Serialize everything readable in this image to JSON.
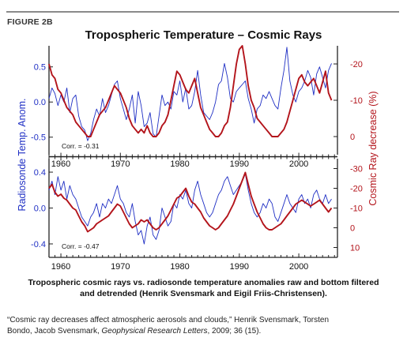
{
  "figure": {
    "label": "FIGURE 2B",
    "title": "Tropospheric Temperature – Cosmic Rays",
    "caption_line1": "Tropospheric cosmic rays vs. radiosonde temperature anomalies raw and bottom filtered",
    "caption_line2": "and detrended (Henrik Svensmark and Eigil Friis-Christensen).",
    "citation_line1": "“Cosmic ray decreases affect atmospheric aerosols and clouds,” Henrik Svensmark, Torsten",
    "citation_authors": "Bondo, Jacob Svensmark, ",
    "citation_journal": "Geophysical Research Letters",
    "citation_rest": ", 2009; 36 (15)."
  },
  "colors": {
    "temperature": "#1f2fc4",
    "cosmic": "#b3141b",
    "axis": "#222222"
  },
  "chart_data": [
    {
      "type": "line",
      "panel": "top",
      "annotation": "Corr. = -0.31",
      "ylabel_left": "Radiosonde Temp. Anom.",
      "ylabel_right": "Cosmic Ray decrease (%)",
      "xlim": [
        1958,
        2006.5
      ],
      "ylim_left": [
        -0.75,
        0.8
      ],
      "ylim_right": [
        5,
        -25
      ],
      "xticks": [
        1960,
        1970,
        1980,
        1990,
        2000
      ],
      "yticks_left": [
        0.5,
        0.0,
        -0.5
      ],
      "yticks_left_labels": [
        "0.5",
        "0.0",
        "-0.5"
      ],
      "yticks_right": [
        -20,
        -10,
        0
      ],
      "yticks_right_labels": [
        "-20",
        "-10",
        "0"
      ],
      "series": [
        {
          "axis": "left",
          "color_key": "temperature",
          "x": [
            1958,
            1958.5,
            1959,
            1959.5,
            1960,
            1960.5,
            1961,
            1961.5,
            1962,
            1962.5,
            1963,
            1963.5,
            1964,
            1964.5,
            1965,
            1965.5,
            1966,
            1966.5,
            1967,
            1967.5,
            1968,
            1968.5,
            1969,
            1969.5,
            1970,
            1970.5,
            1971,
            1971.5,
            1972,
            1972.5,
            1973,
            1973.5,
            1974,
            1974.5,
            1975,
            1975.5,
            1976,
            1976.5,
            1977,
            1977.5,
            1978,
            1978.5,
            1979,
            1979.5,
            1980,
            1980.5,
            1981,
            1981.5,
            1982,
            1982.5,
            1983,
            1983.5,
            1984,
            1984.5,
            1985,
            1985.5,
            1986,
            1986.5,
            1987,
            1987.5,
            1988,
            1988.5,
            1989,
            1989.5,
            1990,
            1990.5,
            1991,
            1991.5,
            1992,
            1992.5,
            1993,
            1993.5,
            1994,
            1994.5,
            1995,
            1995.5,
            1996,
            1996.5,
            1997,
            1997.5,
            1998,
            1998.5,
            1999,
            1999.5,
            2000,
            2000.5,
            2001,
            2001.5,
            2002,
            2002.5,
            2003,
            2003.5,
            2004,
            2004.5,
            2005,
            2005.5
          ],
          "y": [
            0.05,
            0.2,
            0.12,
            -0.05,
            0.1,
            0.0,
            0.2,
            -0.15,
            0.05,
            0.1,
            -0.2,
            -0.35,
            -0.4,
            -0.55,
            -0.45,
            -0.25,
            -0.1,
            -0.2,
            0.05,
            -0.15,
            -0.05,
            0.1,
            0.25,
            0.3,
            0.05,
            -0.1,
            -0.25,
            -0.1,
            0.1,
            -0.3,
            0.15,
            -0.05,
            -0.35,
            -0.3,
            -0.15,
            -0.45,
            -0.5,
            -0.2,
            0.1,
            -0.05,
            0.0,
            -0.1,
            0.15,
            0.1,
            0.3,
            0.0,
            0.2,
            -0.1,
            -0.05,
            0.15,
            0.45,
            0.1,
            -0.15,
            -0.2,
            -0.25,
            -0.15,
            0.0,
            0.25,
            0.3,
            0.55,
            0.35,
            0.05,
            0.0,
            0.15,
            0.2,
            0.25,
            0.3,
            0.05,
            -0.1,
            -0.3,
            -0.1,
            -0.05,
            0.1,
            0.05,
            0.15,
            0.05,
            -0.05,
            -0.1,
            0.2,
            0.45,
            0.78,
            0.3,
            0.1,
            0.0,
            0.15,
            0.2,
            0.3,
            0.45,
            0.35,
            0.1,
            0.4,
            0.5,
            0.35,
            0.2,
            0.45,
            0.55
          ]
        },
        {
          "axis": "right",
          "color_key": "cosmic",
          "x": [
            1958,
            1958.5,
            1959,
            1959.5,
            1960,
            1960.5,
            1961,
            1961.5,
            1962,
            1962.5,
            1963,
            1963.5,
            1964,
            1964.5,
            1965,
            1965.5,
            1966,
            1966.5,
            1967,
            1967.5,
            1968,
            1968.5,
            1969,
            1969.5,
            1970,
            1970.5,
            1971,
            1971.5,
            1972,
            1972.5,
            1973,
            1973.5,
            1974,
            1974.5,
            1975,
            1975.5,
            1976,
            1976.5,
            1977,
            1977.5,
            1978,
            1978.5,
            1979,
            1979.5,
            1980,
            1980.5,
            1981,
            1981.5,
            1982,
            1982.5,
            1983,
            1983.5,
            1984,
            1984.5,
            1985,
            1985.5,
            1986,
            1986.5,
            1987,
            1987.5,
            1988,
            1988.5,
            1989,
            1989.5,
            1990,
            1990.5,
            1991,
            1991.5,
            1992,
            1992.5,
            1993,
            1993.5,
            1994,
            1994.5,
            1995,
            1995.5,
            1996,
            1996.5,
            1997,
            1997.5,
            1998,
            1998.5,
            1999,
            1999.5,
            2000,
            2000.5,
            2001,
            2001.5,
            2002,
            2002.5,
            2003,
            2003.5,
            2004,
            2004.5,
            2005,
            2005.5
          ],
          "y": [
            -20,
            -17,
            -16,
            -13,
            -12,
            -10,
            -8,
            -7,
            -6,
            -4,
            -3,
            -2,
            -1,
            0,
            0,
            -2,
            -4,
            -6,
            -7,
            -8,
            -10,
            -12,
            -14,
            -13,
            -12,
            -10,
            -8,
            -5,
            -3,
            -2,
            -1,
            -2,
            -1,
            -3,
            -1,
            0,
            0,
            -1,
            -3,
            -4,
            -6,
            -10,
            -14,
            -18,
            -17,
            -15,
            -13,
            -12,
            -14,
            -16,
            -12,
            -8,
            -6,
            -4,
            -2,
            -1,
            0,
            0,
            -1,
            -3,
            -4,
            -8,
            -14,
            -20,
            -24,
            -25,
            -20,
            -14,
            -10,
            -8,
            -5,
            -4,
            -3,
            -2,
            -1,
            0,
            0,
            0,
            -1,
            -2,
            -4,
            -7,
            -10,
            -13,
            -16,
            -17,
            -15,
            -14,
            -15,
            -16,
            -14,
            -12,
            -15,
            -18,
            -12,
            -10
          ]
        }
      ]
    },
    {
      "type": "line",
      "panel": "bottom",
      "annotation": "Corr. = -0.47",
      "xlabel": "",
      "xlim": [
        1958,
        2006.5
      ],
      "ylim_left": [
        -0.55,
        0.55
      ],
      "ylim_right": [
        15,
        -35
      ],
      "xticks": [
        1960,
        1970,
        1980,
        1990,
        2000
      ],
      "yticks_left": [
        0.4,
        0.0,
        -0.4
      ],
      "yticks_left_labels": [
        "0.4",
        "0.0",
        "-0.4"
      ],
      "yticks_right": [
        -30,
        -20,
        -10,
        0,
        10
      ],
      "yticks_right_labels": [
        "-30",
        "-20",
        "-10",
        "0",
        "10"
      ],
      "series": [
        {
          "axis": "left",
          "color_key": "temperature",
          "x": [
            1958,
            1958.5,
            1959,
            1959.5,
            1960,
            1960.5,
            1961,
            1961.5,
            1962,
            1962.5,
            1963,
            1963.5,
            1964,
            1964.5,
            1965,
            1965.5,
            1966,
            1966.5,
            1967,
            1967.5,
            1968,
            1968.5,
            1969,
            1969.5,
            1970,
            1970.5,
            1971,
            1971.5,
            1972,
            1972.5,
            1973,
            1973.5,
            1974,
            1974.5,
            1975,
            1975.5,
            1976,
            1976.5,
            1977,
            1977.5,
            1978,
            1978.5,
            1979,
            1979.5,
            1980,
            1980.5,
            1981,
            1981.5,
            1982,
            1982.5,
            1983,
            1983.5,
            1984,
            1984.5,
            1985,
            1985.5,
            1986,
            1986.5,
            1987,
            1987.5,
            1988,
            1988.5,
            1989,
            1989.5,
            1990,
            1990.5,
            1991,
            1991.5,
            1992,
            1992.5,
            1993,
            1993.5,
            1994,
            1994.5,
            1995,
            1995.5,
            1996,
            1996.5,
            1997,
            1997.5,
            1998,
            1998.5,
            1999,
            1999.5,
            2000,
            2000.5,
            2001,
            2001.5,
            2002,
            2002.5,
            2003,
            2003.5,
            2004,
            2004.5,
            2005,
            2005.5
          ],
          "y": [
            0.2,
            0.3,
            0.15,
            0.35,
            0.2,
            0.3,
            0.1,
            0.25,
            0.15,
            0.1,
            0.0,
            -0.1,
            -0.15,
            -0.2,
            -0.1,
            -0.05,
            0.05,
            -0.1,
            0.05,
            0.0,
            0.1,
            0.05,
            0.15,
            0.25,
            0.1,
            0.05,
            -0.05,
            -0.1,
            0.05,
            -0.15,
            -0.3,
            -0.25,
            -0.4,
            -0.2,
            -0.1,
            -0.3,
            -0.35,
            -0.25,
            0.0,
            -0.1,
            -0.2,
            -0.15,
            0.05,
            0.0,
            0.15,
            0.1,
            0.2,
            0.05,
            0.0,
            0.2,
            0.3,
            0.15,
            0.05,
            -0.05,
            -0.1,
            -0.05,
            0.05,
            0.15,
            0.2,
            0.3,
            0.35,
            0.25,
            0.15,
            0.2,
            0.25,
            0.3,
            0.38,
            0.2,
            0.05,
            -0.05,
            -0.1,
            -0.05,
            0.05,
            0.0,
            0.1,
            0.05,
            -0.1,
            -0.15,
            -0.05,
            0.05,
            0.15,
            0.05,
            0.0,
            -0.05,
            0.1,
            0.15,
            0.05,
            0.1,
            0.0,
            0.15,
            0.2,
            0.1,
            0.05,
            0.15,
            0.05,
            0.1
          ]
        },
        {
          "axis": "right",
          "color_key": "cosmic",
          "x": [
            1958,
            1958.5,
            1959,
            1959.5,
            1960,
            1960.5,
            1961,
            1961.5,
            1962,
            1962.5,
            1963,
            1963.5,
            1964,
            1964.5,
            1965,
            1965.5,
            1966,
            1966.5,
            1967,
            1967.5,
            1968,
            1968.5,
            1969,
            1969.5,
            1970,
            1970.5,
            1971,
            1971.5,
            1972,
            1972.5,
            1973,
            1973.5,
            1974,
            1974.5,
            1975,
            1975.5,
            1976,
            1976.5,
            1977,
            1977.5,
            1978,
            1978.5,
            1979,
            1979.5,
            1980,
            1980.5,
            1981,
            1981.5,
            1982,
            1982.5,
            1983,
            1983.5,
            1984,
            1984.5,
            1985,
            1985.5,
            1986,
            1986.5,
            1987,
            1987.5,
            1988,
            1988.5,
            1989,
            1989.5,
            1990,
            1990.5,
            1991,
            1991.5,
            1992,
            1992.5,
            1993,
            1993.5,
            1994,
            1994.5,
            1995,
            1995.5,
            1996,
            1996.5,
            1997,
            1997.5,
            1998,
            1998.5,
            1999,
            1999.5,
            2000,
            2000.5,
            2001,
            2001.5,
            2002,
            2002.5,
            2003,
            2003.5,
            2004,
            2004.5,
            2005,
            2005.5
          ],
          "y": [
            -20,
            -22,
            -18,
            -16,
            -17,
            -15,
            -14,
            -12,
            -10,
            -9,
            -6,
            -3,
            -1,
            2,
            1,
            0,
            -2,
            -3,
            -4,
            -5,
            -6,
            -8,
            -10,
            -12,
            -11,
            -8,
            -5,
            -2,
            0,
            -1,
            -2,
            -4,
            -3,
            -4,
            -2,
            0,
            1,
            0,
            -2,
            -4,
            -6,
            -9,
            -12,
            -15,
            -16,
            -18,
            -20,
            -16,
            -13,
            -12,
            -10,
            -8,
            -5,
            -3,
            -1,
            0,
            1,
            0,
            -2,
            -4,
            -6,
            -9,
            -12,
            -16,
            -20,
            -24,
            -28,
            -22,
            -16,
            -12,
            -8,
            -5,
            -2,
            0,
            1,
            1,
            0,
            -1,
            -2,
            -4,
            -6,
            -8,
            -10,
            -12,
            -13,
            -14,
            -13,
            -12,
            -11,
            -12,
            -13,
            -14,
            -12,
            -10,
            -8,
            -10
          ]
        }
      ]
    }
  ]
}
